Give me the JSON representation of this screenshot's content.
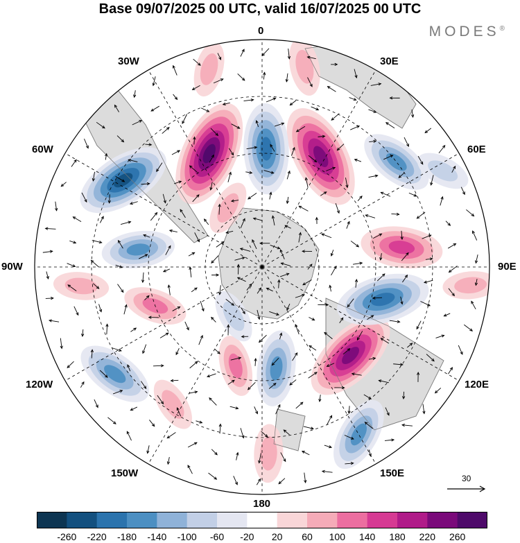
{
  "title": "Base 09/07/2025 00 UTC, valid 16/07/2025 00 UTC",
  "brand": "MODES",
  "brand_mark": "®",
  "longitude_labels": {
    "lon_0": "0",
    "lon_30e": "30E",
    "lon_60e": "60E",
    "lon_90e": "90E",
    "lon_120e": "120E",
    "lon_150e": "150E",
    "lon_180": "180",
    "lon_150w": "150W",
    "lon_120w": "120W",
    "lon_90w": "90W",
    "lon_60w": "60W",
    "lon_30w": "30W"
  },
  "reference_vector": {
    "value": "30"
  },
  "colorbar": {
    "ticks": [
      "-260",
      "-220",
      "-180",
      "-140",
      "-100",
      "-60",
      "-20",
      "20",
      "60",
      "100",
      "140",
      "180",
      "220",
      "260"
    ],
    "colors": [
      "#0d3552",
      "#13507f",
      "#2b73ad",
      "#4c8fc2",
      "#8fb2d8",
      "#c2cfe6",
      "#e4e6f1",
      "#ffffff",
      "#f9d6d8",
      "#f5abb8",
      "#ec6ea0",
      "#d63a93",
      "#b01b89",
      "#7a0a7a",
      "#4e0a6a"
    ]
  },
  "map": {
    "projection": "south-polar-stereographic",
    "colors": {
      "land": "#dcdcdc",
      "ocean_bg": "#ffffff",
      "coast": "#7a7a7a",
      "grid": "#000000"
    },
    "anomaly_centers": [
      {
        "lon": 28,
        "colat": 0.55,
        "value": 230
      },
      {
        "lon": 2,
        "colat": 0.52,
        "value": -180
      },
      {
        "lon": -25,
        "colat": 0.55,
        "value": 240
      },
      {
        "lon": -58,
        "colat": 0.72,
        "value": -200
      },
      {
        "lon": -82,
        "colat": 0.55,
        "value": -120
      },
      {
        "lon": -96,
        "colat": 0.8,
        "value": 60
      },
      {
        "lon": -110,
        "colat": 0.5,
        "value": 90
      },
      {
        "lon": -126,
        "colat": 0.8,
        "value": -140
      },
      {
        "lon": -147,
        "colat": 0.72,
        "value": 60
      },
      {
        "lon": -165,
        "colat": 0.45,
        "value": 80
      },
      {
        "lon": 172,
        "colat": 0.45,
        "value": -130
      },
      {
        "lon": 178,
        "colat": 0.82,
        "value": 70
      },
      {
        "lon": 150,
        "colat": 0.85,
        "value": -130
      },
      {
        "lon": 135,
        "colat": 0.55,
        "value": 210
      },
      {
        "lon": 105,
        "colat": 0.55,
        "value": -190
      },
      {
        "lon": 82,
        "colat": 0.62,
        "value": 150
      },
      {
        "lon": 52,
        "colat": 0.75,
        "value": -130
      },
      {
        "lon": 95,
        "colat": 0.92,
        "value": 60
      },
      {
        "lon": 62,
        "colat": 0.9,
        "value": -60
      },
      {
        "lon": -15,
        "colat": 0.9,
        "value": 60
      },
      {
        "lon": 12,
        "colat": 0.9,
        "value": 70
      },
      {
        "lon": -150,
        "colat": 0.25,
        "value": -60
      },
      {
        "lon": -30,
        "colat": 0.3,
        "value": 60
      }
    ]
  }
}
